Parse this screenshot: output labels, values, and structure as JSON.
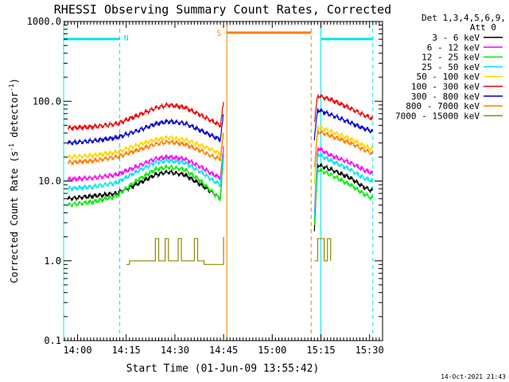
{
  "chart_data": {
    "type": "line",
    "title": "RHESSI Observing Summary Count Rates, Corrected",
    "xlabel": "Start Time (01-Jun-09 13:55:42)",
    "ylabel": "Corrected Count Rate (s",
    "ylabel_sup": "-1",
    "ylabel_mid": " detector",
    "ylabel_sup2": "-1",
    "ylabel_end": ")",
    "y_scale": "log",
    "ylim": [
      0.1,
      1000
    ],
    "xlim": [
      "13:55:42",
      "15:34:00"
    ],
    "y_ticks": [
      "0.1",
      "1.0",
      "10.0",
      "100.0",
      "1000.0"
    ],
    "x_ticks": [
      "14:00",
      "14:15",
      "14:30",
      "14:45",
      "15:00",
      "15:15",
      "15:30"
    ],
    "legend_header": [
      "Det 1,3,4,5,6,9,",
      "Att 0"
    ],
    "legend_position": "outside-right",
    "timestamp": "14-Oct-2021 21:43",
    "data_gaps": [
      [
        "14:46",
        "15:12"
      ]
    ],
    "markers": {
      "night": [
        {
          "start": "13:55:42",
          "end": "14:13",
          "label": "N",
          "color": "#00e5ee"
        },
        {
          "start": "15:15",
          "end": "15:31",
          "label": "",
          "color": "#00e5ee"
        }
      ],
      "saa": {
        "start": "14:46",
        "end": "15:12",
        "label": "S",
        "color": "#ff7f00"
      }
    },
    "series": [
      {
        "name": "3 - 6 keV",
        "color": "#000000",
        "segment1": [
          [
            "13:57",
            6
          ],
          [
            "14:05",
            6.5
          ],
          [
            "14:12",
            7
          ],
          [
            "14:18",
            9
          ],
          [
            "14:24",
            12
          ],
          [
            "14:28",
            13
          ],
          [
            "14:33",
            12
          ],
          [
            "14:38",
            9
          ],
          [
            "14:42",
            7
          ],
          [
            "14:44",
            6
          ],
          [
            "14:45",
            22
          ]
        ],
        "segment2": [
          [
            "15:13",
            2.5
          ],
          [
            "15:14",
            16
          ],
          [
            "15:18",
            14
          ],
          [
            "15:24",
            11
          ],
          [
            "15:28",
            8.5
          ],
          [
            "15:31",
            7.5
          ]
        ]
      },
      {
        "name": "6 - 12 keV",
        "color": "#ff00ff",
        "segment1": [
          [
            "13:57",
            10.5
          ],
          [
            "14:05",
            11
          ],
          [
            "14:12",
            12
          ],
          [
            "14:18",
            15
          ],
          [
            "14:24",
            19
          ],
          [
            "14:28",
            20
          ],
          [
            "14:33",
            19
          ],
          [
            "14:38",
            15
          ],
          [
            "14:42",
            12
          ],
          [
            "14:44",
            11
          ],
          [
            "14:45",
            27
          ]
        ],
        "segment2": [
          [
            "15:13",
            4
          ],
          [
            "15:14",
            26
          ],
          [
            "15:18",
            21
          ],
          [
            "15:24",
            17
          ],
          [
            "15:28",
            14
          ],
          [
            "15:31",
            12.5
          ]
        ]
      },
      {
        "name": "12 - 25 keV",
        "color": "#00ee00",
        "segment1": [
          [
            "13:57",
            5
          ],
          [
            "14:05",
            5.5
          ],
          [
            "14:12",
            6.5
          ],
          [
            "14:18",
            10
          ],
          [
            "14:24",
            14
          ],
          [
            "14:28",
            15
          ],
          [
            "14:33",
            14
          ],
          [
            "14:38",
            10
          ],
          [
            "14:42",
            7
          ],
          [
            "14:44",
            6
          ],
          [
            "14:45",
            24
          ]
        ],
        "segment2": [
          [
            "15:13",
            3
          ],
          [
            "15:14",
            14
          ],
          [
            "15:18",
            12
          ],
          [
            "15:24",
            9
          ],
          [
            "15:28",
            7
          ],
          [
            "15:31",
            6
          ]
        ]
      },
      {
        "name": "25 - 50 keV",
        "color": "#00e5ee",
        "segment1": [
          [
            "13:57",
            8
          ],
          [
            "14:05",
            8.5
          ],
          [
            "14:12",
            9.5
          ],
          [
            "14:18",
            13
          ],
          [
            "14:24",
            17
          ],
          [
            "14:28",
            18
          ],
          [
            "14:33",
            17
          ],
          [
            "14:38",
            13
          ],
          [
            "14:42",
            10
          ],
          [
            "14:44",
            9
          ],
          [
            "14:45",
            24
          ]
        ],
        "segment2": [
          [
            "15:13",
            3.5
          ],
          [
            "15:14",
            22
          ],
          [
            "15:18",
            18
          ],
          [
            "15:24",
            14
          ],
          [
            "15:28",
            11
          ],
          [
            "15:31",
            10
          ]
        ]
      },
      {
        "name": "50 - 100 keV",
        "color": "#ffd700",
        "segment1": [
          [
            "13:57",
            20
          ],
          [
            "14:05",
            21
          ],
          [
            "14:12",
            23
          ],
          [
            "14:18",
            28
          ],
          [
            "14:24",
            33
          ],
          [
            "14:28",
            35
          ],
          [
            "14:33",
            33
          ],
          [
            "14:38",
            28
          ],
          [
            "14:42",
            24
          ],
          [
            "14:44",
            22
          ],
          [
            "14:45",
            42
          ]
        ],
        "segment2": [
          [
            "15:13",
            10
          ],
          [
            "15:14",
            48
          ],
          [
            "15:18",
            42
          ],
          [
            "15:24",
            34
          ],
          [
            "15:28",
            28
          ],
          [
            "15:31",
            25
          ]
        ]
      },
      {
        "name": "100 - 300 keV",
        "color": "#ee0000",
        "segment1": [
          [
            "13:57",
            46
          ],
          [
            "14:05",
            48
          ],
          [
            "14:12",
            52
          ],
          [
            "14:18",
            65
          ],
          [
            "14:24",
            82
          ],
          [
            "14:28",
            90
          ],
          [
            "14:33",
            84
          ],
          [
            "14:38",
            67
          ],
          [
            "14:42",
            55
          ],
          [
            "14:44",
            50
          ],
          [
            "14:45",
            95
          ]
        ],
        "segment2": [
          [
            "15:13",
            55
          ],
          [
            "15:14",
            118
          ],
          [
            "15:18",
            105
          ],
          [
            "15:24",
            82
          ],
          [
            "15:28",
            68
          ],
          [
            "15:31",
            60
          ]
        ]
      },
      {
        "name": "300 - 800 keV",
        "color": "#0000cc",
        "segment1": [
          [
            "13:57",
            30
          ],
          [
            "14:05",
            32
          ],
          [
            "14:12",
            35
          ],
          [
            "14:18",
            42
          ],
          [
            "14:24",
            52
          ],
          [
            "14:28",
            56
          ],
          [
            "14:33",
            53
          ],
          [
            "14:38",
            43
          ],
          [
            "14:42",
            36
          ],
          [
            "14:44",
            33
          ],
          [
            "14:45",
            70
          ]
        ],
        "segment2": [
          [
            "15:13",
            35
          ],
          [
            "15:14",
            78
          ],
          [
            "15:18",
            68
          ],
          [
            "15:24",
            54
          ],
          [
            "15:28",
            46
          ],
          [
            "15:31",
            42
          ]
        ]
      },
      {
        "name": "800 - 7000 keV",
        "color": "#ff7f00",
        "segment1": [
          [
            "13:57",
            17
          ],
          [
            "14:05",
            18
          ],
          [
            "14:12",
            20
          ],
          [
            "14:18",
            24
          ],
          [
            "14:24",
            29
          ],
          [
            "14:28",
            31
          ],
          [
            "14:33",
            29
          ],
          [
            "14:38",
            24
          ],
          [
            "14:42",
            20
          ],
          [
            "14:44",
            19
          ],
          [
            "14:45",
            38
          ]
        ],
        "segment2": [
          [
            "15:13",
            15
          ],
          [
            "15:14",
            42
          ],
          [
            "15:18",
            37
          ],
          [
            "15:24",
            30
          ],
          [
            "15:28",
            25
          ],
          [
            "15:31",
            22
          ]
        ]
      },
      {
        "name": "7000 - 15000 keV",
        "color": "#8b8b00",
        "segment1": [
          [
            "14:15",
            0.9
          ],
          [
            "14:16",
            1
          ],
          [
            "14:23",
            1
          ],
          [
            "14:24",
            1.9
          ],
          [
            "14:25",
            1
          ],
          [
            "14:27",
            1.9
          ],
          [
            "14:28",
            1
          ],
          [
            "14:31",
            1.9
          ],
          [
            "14:32",
            1
          ],
          [
            "14:36",
            1.9
          ],
          [
            "14:37",
            1
          ],
          [
            "14:39",
            0.9
          ],
          [
            "14:44",
            0.9
          ],
          [
            "14:45",
            2
          ]
        ],
        "segment2": [
          [
            "15:13",
            1
          ],
          [
            "15:14",
            1.9
          ],
          [
            "15:16",
            1
          ],
          [
            "15:17",
            1.9
          ],
          [
            "15:18",
            1
          ]
        ]
      }
    ]
  }
}
